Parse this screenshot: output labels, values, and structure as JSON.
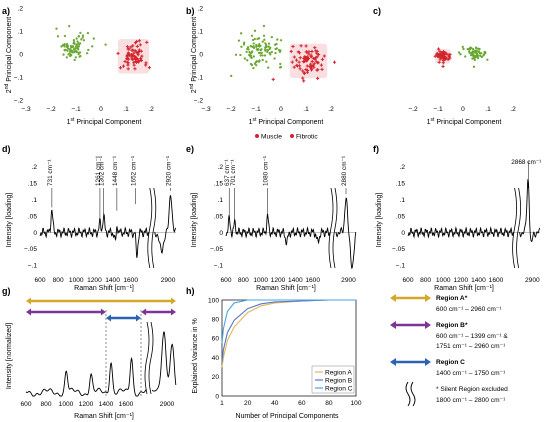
{
  "figure": {
    "panel_labels": [
      "a)",
      "b)",
      "c)",
      "d)",
      "e)",
      "f)",
      "g)",
      "h)"
    ],
    "pca_axis": {
      "xlabel_pre": "1",
      "xlabel_sup": "st",
      "xlabel_post": " Principal Component",
      "ylabel_pre": "2",
      "ylabel_sup": "nd",
      "ylabel_post": " Principal Component"
    },
    "pca_legend": {
      "muscle": "Muscle",
      "fibrotic": "Fibrotic"
    },
    "spectra_axis": {
      "xlabel": "Raman Shift [cm⁻¹]",
      "ylabel": "Intensity [loading]"
    },
    "g_axis": {
      "xlabel": "Raman Shift [cm⁻¹]",
      "ylabel": "Intensity [normalized]"
    },
    "h_axis": {
      "xlabel": "Number of Principal Components",
      "ylabel": "Explained Variance in %"
    },
    "peak_annotations": {
      "d": [
        "731 cm⁻¹",
        "1261 cm⁻¹",
        "1302 cm⁻¹",
        "1448 cm⁻¹",
        "1652 cm⁻¹",
        "2920 cm⁻¹"
      ],
      "e": [
        "637 cm⁻¹",
        "701 cm⁻¹",
        "1080 cm⁻¹",
        "2880 cm⁻¹"
      ],
      "f": [
        "2868 cm⁻¹"
      ]
    },
    "region_legend": [
      {
        "title": "Region A*",
        "lines": [
          "600 cm⁻¹ – 2960 cm⁻¹"
        ],
        "color": "#d4a82a"
      },
      {
        "title": "Region B*",
        "lines": [
          "600 cm⁻¹ – 1399 cm⁻¹ &",
          "1751 cm⁻¹ – 2960 cm⁻¹"
        ],
        "color": "#7a3596"
      },
      {
        "title": "Region C",
        "lines": [
          "1400 cm⁻¹ – 1750 cm⁻¹"
        ],
        "color": "#2a62b4"
      },
      {
        "title": "* Silent Region excluded",
        "lines": [
          "1800 cm⁻¹ – 2800 cm⁻¹"
        ],
        "color": "#000000"
      }
    ],
    "colors": {
      "muscle": "#6aa832",
      "fibrotic": "#d2242b",
      "fibrotic_halo": "#f2b9be",
      "regionA": "#d4a82a",
      "regionB": "#7a3596",
      "regionC": "#2a62b4",
      "curveA": "#e0b85a",
      "curveB": "#5a78c8",
      "curveC": "#4aa3e0"
    }
  },
  "chart_data": [
    {
      "panel": "a)",
      "type": "scatter",
      "xlim": [
        -0.3,
        0.3
      ],
      "ylim": [
        -0.2,
        0.2
      ],
      "xticks": [
        -0.3,
        -0.2,
        -0.1,
        0,
        0.1,
        0.2
      ],
      "yticks": [
        -0.2,
        -0.1,
        0,
        0.1,
        0.2
      ],
      "series": [
        {
          "name": "Muscle",
          "center": [
            -0.11,
            0.03
          ],
          "spread": [
            0.06,
            0.05
          ],
          "n": 80
        },
        {
          "name": "Fibrotic",
          "center": [
            0.13,
            -0.01
          ],
          "spread": [
            0.05,
            0.06
          ],
          "n": 70
        }
      ]
    },
    {
      "panel": "b)",
      "type": "scatter",
      "xlim": [
        -0.3,
        0.3
      ],
      "ylim": [
        -0.2,
        0.2
      ],
      "xticks": [
        -0.3,
        -0.2,
        -0.1,
        0,
        0.1,
        0.2
      ],
      "yticks": [
        -0.2,
        -0.1,
        0,
        0.1,
        0.2
      ],
      "series": [
        {
          "name": "Muscle",
          "center": [
            -0.08,
            0.02
          ],
          "spread": [
            0.08,
            0.06
          ],
          "n": 100
        },
        {
          "name": "Fibrotic",
          "center": [
            0.11,
            -0.03
          ],
          "spread": [
            0.06,
            0.06
          ],
          "n": 80
        }
      ]
    },
    {
      "panel": "c)",
      "type": "scatter",
      "xlim": [
        -0.3,
        0.3
      ],
      "ylim": [
        -0.2,
        0.2
      ],
      "xticks": [
        -0.2,
        -0.1,
        0,
        0.1,
        0.2
      ],
      "series": [
        {
          "name": "Muscle",
          "center": [
            0.05,
            0.0
          ],
          "spread": [
            0.05,
            0.025
          ],
          "n": 70
        },
        {
          "name": "Fibrotic",
          "center": [
            -0.08,
            -0.01
          ],
          "spread": [
            0.025,
            0.025
          ],
          "n": 55
        }
      ]
    },
    {
      "panel": "d)",
      "type": "line",
      "xlim": [
        600,
        2960
      ],
      "ylim": [
        -0.12,
        0.22
      ],
      "xticks": [
        600,
        800,
        1000,
        1200,
        1400,
        1600,
        2900
      ],
      "yticks": [
        -0.1,
        -0.05,
        0,
        0.05,
        0.1,
        0.15,
        0.2
      ],
      "peaks": [
        {
          "x": 731,
          "y": 0.07
        },
        {
          "x": 1261,
          "y": 0.03
        },
        {
          "x": 1302,
          "y": 0.05
        },
        {
          "x": 1448,
          "y": 0.06
        },
        {
          "x": 1652,
          "y": 0.08
        },
        {
          "x": 2920,
          "y": 0.12
        }
      ],
      "dips": [
        {
          "x": 1440,
          "y": -0.05
        },
        {
          "x": 1660,
          "y": -0.11
        },
        {
          "x": 2850,
          "y": -0.06
        }
      ]
    },
    {
      "panel": "e)",
      "type": "line",
      "xlim": [
        600,
        2960
      ],
      "ylim": [
        -0.12,
        0.22
      ],
      "xticks": [
        600,
        800,
        1000,
        1200,
        1400,
        1600,
        2900
      ],
      "yticks": [
        -0.1,
        -0.05,
        0,
        0.05,
        0.1,
        0.15,
        0.2
      ],
      "peaks": [
        {
          "x": 637,
          "y": 0.04
        },
        {
          "x": 701,
          "y": 0.03
        },
        {
          "x": 1080,
          "y": 0.05
        },
        {
          "x": 2880,
          "y": 0.11
        }
      ],
      "dips": [
        {
          "x": 1300,
          "y": -0.03
        },
        {
          "x": 1660,
          "y": -0.03
        },
        {
          "x": 2930,
          "y": -0.1
        }
      ]
    },
    {
      "panel": "f)",
      "type": "line",
      "xlim": [
        600,
        2960
      ],
      "ylim": [
        -0.12,
        0.22
      ],
      "xticks": [
        600,
        800,
        1000,
        1200,
        1400,
        1600,
        2900
      ],
      "yticks": [
        -0.1,
        -0.05,
        0,
        0.05,
        0.1,
        0.15,
        0.2
      ],
      "peaks": [
        {
          "x": 2868,
          "y": 0.21
        }
      ],
      "dips": [
        {
          "x": 2880,
          "y": -0.07
        }
      ]
    },
    {
      "panel": "g)",
      "type": "line",
      "xlim": [
        600,
        2960
      ],
      "xticks": [
        600,
        800,
        1000,
        1200,
        1400,
        1600,
        2900
      ],
      "region_bars": [
        {
          "name": "Region A",
          "from": 600,
          "to": 2960
        },
        {
          "name": "Region B",
          "from": 600,
          "to": 1399
        },
        {
          "name": "Region B",
          "from": 1751,
          "to": 2960
        },
        {
          "name": "Region C",
          "from": 1400,
          "to": 1750
        }
      ],
      "bands": [
        {
          "x": 1003,
          "y": 0.3
        },
        {
          "x": 1250,
          "y": 0.25
        },
        {
          "x": 1450,
          "y": 0.45
        },
        {
          "x": 1655,
          "y": 0.5
        },
        {
          "x": 2880,
          "y": 0.85
        },
        {
          "x": 2935,
          "y": 0.7
        }
      ]
    },
    {
      "panel": "h)",
      "type": "line",
      "xlim": [
        1,
        100
      ],
      "ylim": [
        0,
        100
      ],
      "xticks": [
        1,
        20,
        40,
        60,
        80,
        100
      ],
      "yticks": [
        0,
        20,
        40,
        60,
        80,
        100
      ],
      "legend_position": "bottom-right",
      "series": [
        {
          "name": "Region A",
          "x": [
            1,
            2,
            5,
            10,
            20,
            30,
            40,
            60,
            80,
            100
          ],
          "values": [
            30,
            40,
            58,
            72,
            87,
            94,
            97,
            99,
            100,
            100
          ]
        },
        {
          "name": "Region B",
          "x": [
            1,
            2,
            5,
            10,
            20,
            30,
            40,
            60,
            80,
            100
          ],
          "values": [
            35,
            48,
            66,
            79,
            91,
            96,
            98,
            99,
            100,
            100
          ]
        },
        {
          "name": "Region C",
          "x": [
            1,
            2,
            5,
            10,
            20,
            30,
            40,
            60,
            80,
            100
          ],
          "values": [
            55,
            70,
            88,
            97,
            100,
            100,
            100,
            100,
            100,
            100
          ]
        }
      ]
    }
  ]
}
